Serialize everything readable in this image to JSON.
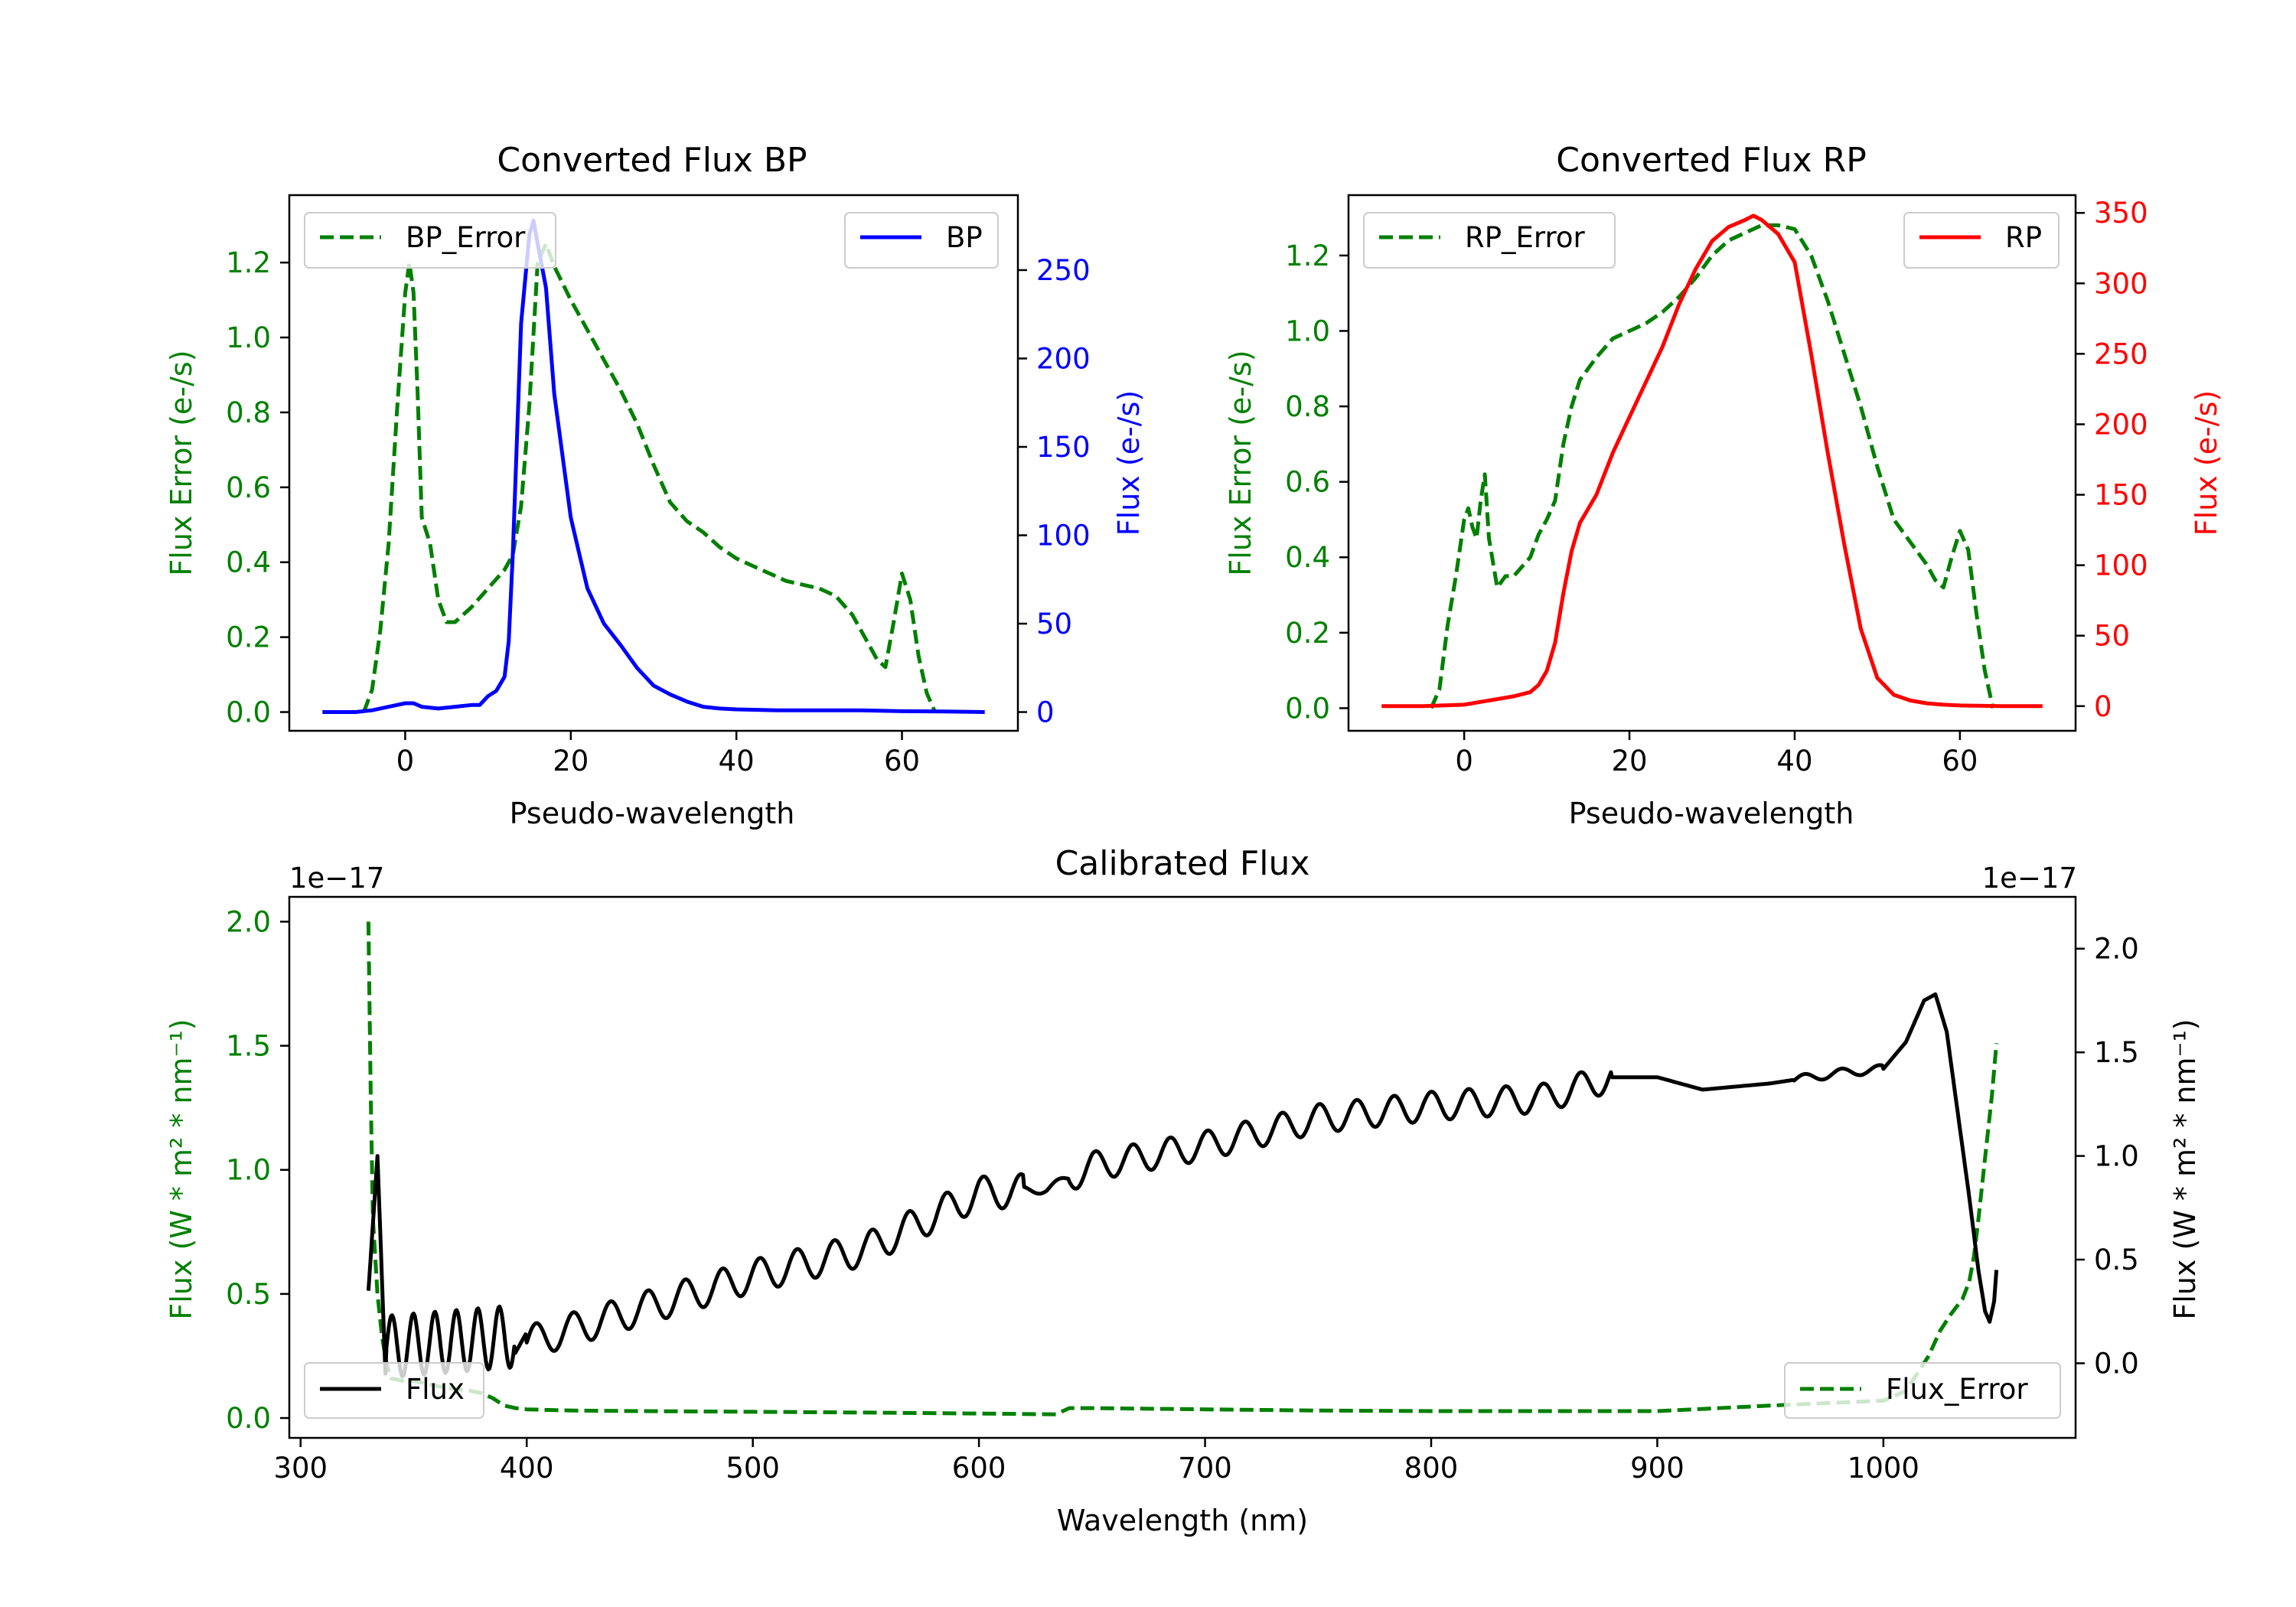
{
  "chart_data": [
    {
      "id": "bp",
      "type": "line",
      "title": "Converted Flux BP",
      "xlabel": "Pseudo-wavelength",
      "ylabel_left": "Flux Error (e-/s)",
      "ylabel_right": "Flux (e-/s)",
      "xlim": [
        -14,
        74
      ],
      "xticks": [
        0,
        20,
        40,
        60
      ],
      "left_axis": {
        "ylim": [
          -0.05,
          1.38
        ],
        "ticks": [
          0.0,
          0.2,
          0.4,
          0.6,
          0.8,
          1.0,
          1.2
        ],
        "color": "#008000"
      },
      "right_axis": {
        "ylim": [
          -10.6,
          292.4
        ],
        "ticks": [
          0,
          50,
          100,
          150,
          200,
          250
        ],
        "color": "#0000ff"
      },
      "series": [
        {
          "name": "BP_Error",
          "axis": "left",
          "color": "#008000",
          "dash": true,
          "x": [
            -5,
            -4,
            -3,
            -2,
            -1,
            0,
            0.5,
            1,
            1.5,
            2,
            3,
            4,
            5,
            6,
            7,
            8,
            10,
            12,
            13,
            14,
            15,
            16,
            17,
            18,
            20,
            22,
            24,
            26,
            28,
            30,
            32,
            34,
            36,
            38,
            40,
            42,
            44,
            46,
            48,
            50,
            51,
            52,
            54,
            56,
            57,
            58,
            59,
            60,
            61,
            62,
            63,
            64
          ],
          "y": [
            0.0,
            0.06,
            0.22,
            0.45,
            0.8,
            1.12,
            1.2,
            1.12,
            0.85,
            0.52,
            0.45,
            0.3,
            0.24,
            0.24,
            0.26,
            0.28,
            0.33,
            0.38,
            0.42,
            0.55,
            0.82,
            1.2,
            1.25,
            1.19,
            1.1,
            1.02,
            0.94,
            0.86,
            0.77,
            0.66,
            0.56,
            0.51,
            0.48,
            0.44,
            0.41,
            0.39,
            0.37,
            0.35,
            0.34,
            0.33,
            0.32,
            0.31,
            0.26,
            0.18,
            0.14,
            0.12,
            0.24,
            0.37,
            0.3,
            0.15,
            0.05,
            0.0
          ]
        },
        {
          "name": "BP",
          "axis": "right",
          "color": "#0000ff",
          "dash": false,
          "x": [
            -10,
            -6,
            -4,
            -2,
            0,
            1,
            2,
            4,
            6,
            8,
            9,
            10,
            11,
            12,
            12.5,
            13,
            14,
            15,
            15.5,
            16,
            17,
            18,
            20,
            22,
            24,
            26,
            28,
            30,
            32,
            34,
            36,
            38,
            40,
            45,
            50,
            55,
            60,
            65,
            70
          ],
          "y": [
            0,
            0,
            1,
            3,
            5,
            5,
            3,
            2,
            3,
            4,
            4,
            9,
            12,
            20,
            40,
            90,
            220,
            270,
            278,
            265,
            240,
            180,
            110,
            70,
            50,
            38,
            25,
            15,
            10,
            6,
            3,
            2,
            1.5,
            1,
            1,
            1,
            0.5,
            0.3,
            0
          ]
        }
      ],
      "legends": [
        {
          "label": "BP_Error",
          "placement": "upper-left"
        },
        {
          "label": "BP",
          "placement": "upper-right"
        }
      ]
    },
    {
      "id": "rp",
      "type": "line",
      "title": "Converted Flux RP",
      "xlabel": "Pseudo-wavelength",
      "ylabel_left": "Flux Error (e-/s)",
      "ylabel_right": "Flux (e-/s)",
      "xlim": [
        -14,
        74
      ],
      "xticks": [
        0,
        20,
        40,
        60
      ],
      "left_axis": {
        "ylim": [
          -0.06,
          1.36
        ],
        "ticks": [
          0.0,
          0.2,
          0.4,
          0.6,
          0.8,
          1.0,
          1.2
        ],
        "color": "#008000"
      },
      "right_axis": {
        "ylim": [
          -17.5,
          362.6
        ],
        "ticks": [
          0,
          50,
          100,
          150,
          200,
          250,
          300,
          350
        ],
        "color": "#ff0000"
      },
      "series": [
        {
          "name": "RP_Error",
          "axis": "left",
          "color": "#008000",
          "dash": true,
          "x": [
            -4,
            -3,
            -2,
            -1,
            0,
            0.5,
            1,
            1.5,
            2,
            2.5,
            3,
            4,
            5,
            6,
            8,
            9,
            10,
            11,
            12,
            13,
            14,
            16,
            18,
            20,
            22,
            24,
            26,
            28,
            30,
            32,
            34,
            36,
            38,
            40,
            42,
            44,
            46,
            48,
            50,
            52,
            54,
            56,
            57,
            58,
            59,
            60,
            61,
            62,
            63,
            64
          ],
          "y": [
            0.0,
            0.05,
            0.22,
            0.35,
            0.5,
            0.53,
            0.48,
            0.45,
            0.55,
            0.62,
            0.45,
            0.32,
            0.35,
            0.35,
            0.4,
            0.46,
            0.5,
            0.55,
            0.7,
            0.8,
            0.87,
            0.93,
            0.98,
            1.0,
            1.02,
            1.05,
            1.09,
            1.14,
            1.2,
            1.24,
            1.26,
            1.28,
            1.28,
            1.27,
            1.2,
            1.08,
            0.94,
            0.8,
            0.64,
            0.5,
            0.44,
            0.38,
            0.34,
            0.32,
            0.4,
            0.47,
            0.42,
            0.25,
            0.1,
            0.0
          ]
        },
        {
          "name": "RP",
          "axis": "right",
          "color": "#ff0000",
          "dash": false,
          "x": [
            -10,
            -5,
            0,
            2,
            4,
            6,
            8,
            9,
            10,
            11,
            12,
            13,
            14,
            16,
            18,
            20,
            22,
            24,
            26,
            28,
            30,
            32,
            34,
            35,
            36,
            38,
            40,
            42,
            44,
            46,
            48,
            50,
            52,
            54,
            56,
            58,
            60,
            65,
            70
          ],
          "y": [
            0,
            0,
            1,
            3,
            5,
            7,
            10,
            15,
            25,
            45,
            80,
            110,
            130,
            150,
            180,
            205,
            230,
            255,
            285,
            310,
            330,
            340,
            345,
            348,
            345,
            335,
            315,
            250,
            180,
            115,
            55,
            20,
            8,
            4,
            2,
            1,
            0.5,
            0,
            0
          ]
        }
      ],
      "legends": [
        {
          "label": "RP_Error",
          "placement": "upper-left"
        },
        {
          "label": "RP",
          "placement": "upper-right"
        }
      ]
    },
    {
      "id": "cal",
      "type": "line",
      "title": "Calibrated Flux",
      "xlabel": "Wavelength (nm)",
      "ylabel_left": "Flux (W * m² * nm⁻¹)",
      "ylabel_right": "Flux (W * m² * nm⁻¹)",
      "offset_left": "1e−17",
      "offset_right": "1e−17",
      "xlim": [
        295,
        1085
      ],
      "xticks": [
        300,
        400,
        500,
        600,
        700,
        800,
        900,
        1000
      ],
      "left_axis": {
        "ylim": [
          -0.08,
          2.1
        ],
        "ticks": [
          0.0,
          0.5,
          1.0,
          1.5,
          2.0
        ],
        "color": "#008000"
      },
      "right_axis": {
        "ylim": [
          -0.36,
          2.25
        ],
        "ticks": [
          0.0,
          0.5,
          1.0,
          1.5,
          2.0
        ],
        "color": "#000000"
      },
      "series": [
        {
          "name": "Flux_Error",
          "axis": "left",
          "color": "#008000",
          "dash": true,
          "x": [
            330,
            331,
            332,
            334,
            336,
            338,
            340,
            345,
            350,
            355,
            360,
            365,
            370,
            375,
            380,
            385,
            390,
            395,
            400,
            420,
            450,
            500,
            550,
            600,
            634,
            640,
            650,
            700,
            750,
            800,
            850,
            900,
            950,
            1000,
            1010,
            1015,
            1020,
            1025,
            1030,
            1035,
            1038,
            1040,
            1042,
            1045,
            1048,
            1050
          ],
          "y": [
            2.0,
            1.3,
            0.8,
            0.5,
            0.33,
            0.22,
            0.16,
            0.15,
            0.15,
            0.14,
            0.13,
            0.12,
            0.115,
            0.11,
            0.1,
            0.08,
            0.05,
            0.04,
            0.035,
            0.03,
            0.028,
            0.025,
            0.022,
            0.018,
            0.015,
            0.04,
            0.04,
            0.035,
            0.03,
            0.028,
            0.028,
            0.028,
            0.05,
            0.07,
            0.11,
            0.18,
            0.25,
            0.35,
            0.42,
            0.48,
            0.55,
            0.65,
            0.8,
            1.05,
            1.3,
            1.51
          ]
        },
        {
          "name": "Flux",
          "axis": "right",
          "color": "#000000",
          "dash": false,
          "sampling": "dense"
        }
      ],
      "legends": [
        {
          "label": "Flux",
          "placement": "lower-left"
        },
        {
          "label": "Flux_Error",
          "placement": "lower-right"
        }
      ]
    }
  ]
}
